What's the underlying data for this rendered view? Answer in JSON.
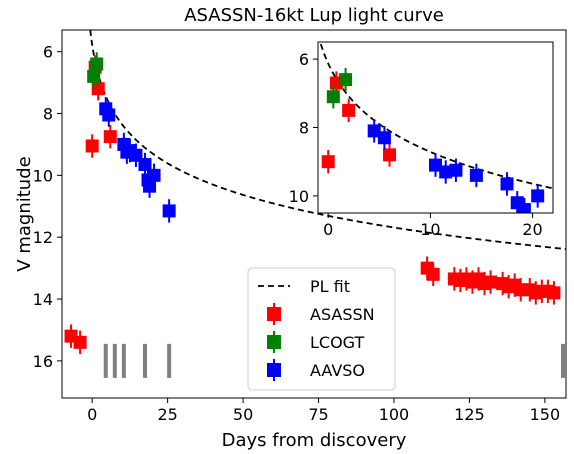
{
  "chart_data": {
    "type": "scatter",
    "title": "ASASSN-16kt Lup light curve",
    "xlabel": "Days from discovery",
    "ylabel": "V magnitude",
    "xlim": [
      -10,
      157
    ],
    "ylim": [
      17.2,
      5.3
    ],
    "y_inverted": true,
    "xticks": [
      0,
      25,
      50,
      75,
      100,
      125,
      150
    ],
    "yticks": [
      6,
      8,
      10,
      12,
      14,
      16
    ],
    "legend_position": "bottom-center",
    "series": [
      {
        "name": "PL fit",
        "kind": "line",
        "style": "dashed",
        "color": "#000000",
        "t0": -2.4,
        "power_law": {
          "a": 10.9,
          "b": 0.168
        }
      },
      {
        "name": "ASASSN",
        "kind": "points",
        "color": "#ff0000",
        "marker": "square",
        "x": [
          -7,
          -4,
          0,
          1,
          2,
          6,
          111,
          113,
          120,
          122,
          124,
          126,
          128,
          130,
          132,
          136,
          138,
          140,
          142,
          145,
          147,
          149,
          151,
          153
        ],
        "y": [
          15.2,
          15.4,
          9.05,
          6.5,
          7.2,
          8.75,
          13.0,
          13.2,
          13.35,
          13.4,
          13.35,
          13.45,
          13.35,
          13.5,
          13.45,
          13.5,
          13.6,
          13.55,
          13.7,
          13.7,
          13.8,
          13.75,
          13.75,
          13.8
        ]
      },
      {
        "name": "LCOGT",
        "kind": "points",
        "color": "#008000",
        "marker": "square",
        "x": [
          0.5,
          1.5
        ],
        "y": [
          6.8,
          6.4
        ]
      },
      {
        "name": "AAVSO",
        "kind": "points",
        "color": "#0000ff",
        "marker": "square",
        "x": [
          4.5,
          5.5,
          10.5,
          11.5,
          12.5,
          14.5,
          17.5,
          18.5,
          19,
          20.5,
          25.5
        ],
        "y": [
          7.85,
          8.05,
          9.0,
          9.25,
          9.2,
          9.35,
          9.65,
          10.15,
          10.35,
          10.0,
          11.15
        ]
      }
    ],
    "vertical_markers": {
      "color": "#808080",
      "x": [
        4.5,
        7.5,
        10.5,
        17.5,
        25.5,
        156
      ],
      "y_range": [
        15.45,
        16.55
      ]
    },
    "inset": {
      "xlim": [
        -1,
        22
      ],
      "ylim": [
        10.5,
        5.5
      ],
      "xticks": [
        0,
        10,
        20
      ],
      "yticks": [
        6,
        8,
        10
      ],
      "series": [
        {
          "name": "PL fit",
          "kind": "line",
          "style": "dashed",
          "color": "#000000"
        },
        {
          "name": "ASASSN",
          "kind": "points",
          "color": "#ff0000",
          "x": [
            0,
            0.8,
            2,
            6
          ],
          "y": [
            9.0,
            6.7,
            7.5,
            8.8
          ]
        },
        {
          "name": "LCOGT",
          "kind": "points",
          "color": "#008000",
          "x": [
            0.5,
            1.7
          ],
          "y": [
            7.1,
            6.6
          ]
        },
        {
          "name": "AAVSO",
          "kind": "points",
          "color": "#0000ff",
          "x": [
            4.5,
            5.5,
            10.5,
            11.5,
            12.5,
            14.5,
            17.5,
            18.5,
            19.2,
            20.5
          ],
          "y": [
            8.1,
            8.3,
            9.1,
            9.3,
            9.25,
            9.4,
            9.65,
            10.2,
            10.4,
            10.0
          ]
        }
      ]
    }
  }
}
